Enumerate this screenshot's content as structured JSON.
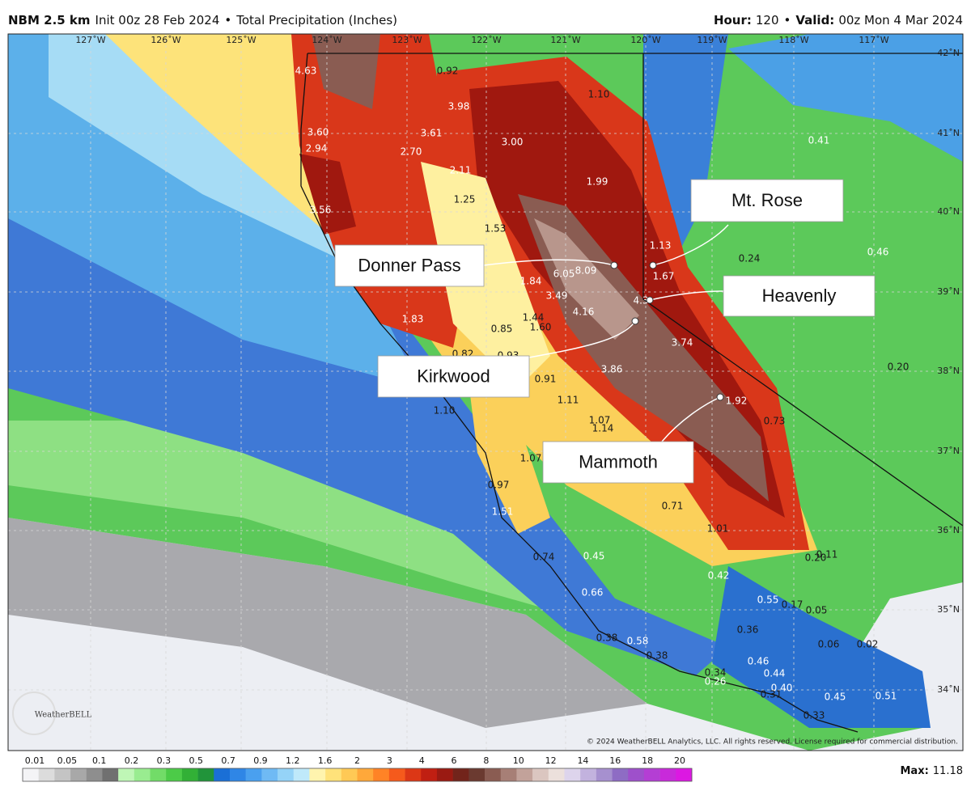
{
  "header": {
    "model": "NBM 2.5 km",
    "init": "Init 00z 28 Feb 2024",
    "separator": "•",
    "field": "Total Precipitation (Inches)",
    "hour_label": "Hour:",
    "hour": 120,
    "valid_label": "Valid:",
    "valid": "00z Mon 4 Mar 2024"
  },
  "longitudes": [
    "127˚W",
    "126˚W",
    "125˚W",
    "124˚W",
    "123˚W",
    "122˚W",
    "121˚W",
    "120˚W",
    "119˚W",
    "118˚W",
    "117˚W"
  ],
  "latitudes": [
    "42˚N",
    "41˚N",
    "40˚N",
    "39˚N",
    "38˚N",
    "37˚N",
    "36˚N",
    "35˚N",
    "34˚N"
  ],
  "map_labels": [
    "4.63",
    "0.92",
    "1.10",
    "3.98",
    "3.60",
    "3.61",
    "3.00",
    "2.94",
    "2.70",
    "0.41",
    "2.11",
    "1.99",
    "1.25",
    "3.56",
    "1.53",
    "1.13",
    "0.24",
    "0.46",
    "6.05",
    "8.09",
    "1.67",
    "1.84",
    "3.49",
    "4.3",
    "4.16",
    "1.44",
    "1.83",
    "0.85",
    "1.60",
    "3.74",
    "0.82",
    "0.93",
    "0.20",
    "3.86",
    "0.91",
    "1.11",
    "1.10",
    "1.07",
    "1.14",
    "1.92",
    "0.73",
    "1.07",
    "0.97",
    "1.51",
    "0.71",
    "1.01",
    "0.74",
    "0.45",
    "0.20",
    "0.11",
    "0.42",
    "0.66",
    "0.55",
    "0.17",
    "0.05",
    "0.36",
    "0.38",
    "0.58",
    "0.06",
    "0.02",
    "0.38",
    "0.46",
    "0.34",
    "0.44",
    "0.26",
    "0.40",
    "0.31",
    "0.45",
    "0.51",
    "0.33"
  ],
  "locations": [
    "Mt. Rose",
    "Donner Pass",
    "Heavenly",
    "Kirkwood",
    "Mammoth"
  ],
  "legend": {
    "values": [
      0.01,
      0.05,
      0.1,
      0.2,
      0.3,
      0.5,
      0.7,
      0.9,
      1.2,
      1.6,
      2,
      3,
      4,
      6,
      8,
      10,
      12,
      14,
      16,
      18,
      20
    ],
    "colors": [
      "#f4f4f6",
      "#dcdcdc",
      "#c4c4c4",
      "#a8a8a8",
      "#8e8e8e",
      "#707070",
      "#bff6b6",
      "#99ec90",
      "#72dc68",
      "#4ccb48",
      "#32b036",
      "#21943a",
      "#1a6fd6",
      "#2f86e6",
      "#4aa0ef",
      "#6fbaf4",
      "#95d3f7",
      "#bfe9fa",
      "#fff4ae",
      "#ffe27a",
      "#ffc955",
      "#ffa83a",
      "#ff8326",
      "#f55a1c",
      "#dc3716",
      "#c01f12",
      "#9a1a12",
      "#72241b",
      "#6b3a30",
      "#8a5c52",
      "#a77f76",
      "#c2a29a",
      "#dbc6c0",
      "#ece0dc",
      "#ddd4ec",
      "#c2b2de",
      "#a690cf",
      "#8e6cc4",
      "#9e50cb",
      "#b43ed4",
      "#c82ada",
      "#dc18e2"
    ]
  },
  "max_label": "Max:",
  "max": 11.18,
  "copyright": "© 2024 WeatherBELL Analytics, LLC. All rights reserved. License required for commercial distribution.",
  "logo": "WeatherBELL"
}
